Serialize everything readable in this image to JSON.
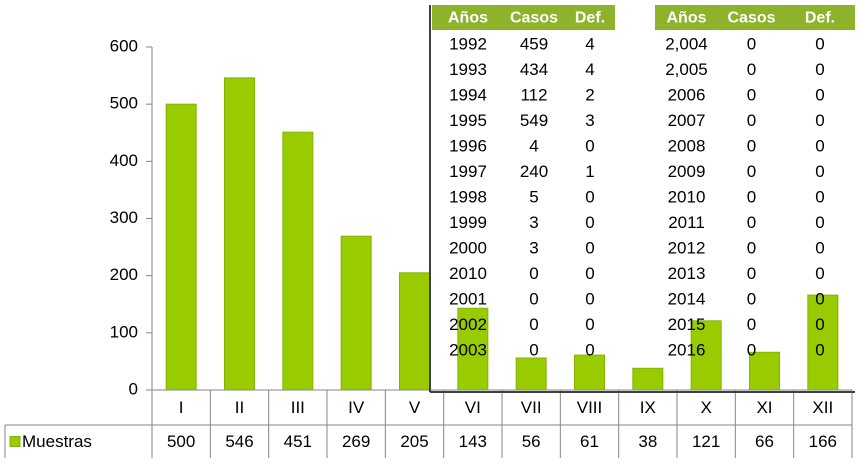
{
  "chart_data": {
    "type": "bar",
    "categories": [
      "I",
      "II",
      "III",
      "IV",
      "V",
      "VI",
      "VII",
      "VIII",
      "IX",
      "X",
      "XI",
      "XII"
    ],
    "series": [
      {
        "name": "Muestras",
        "color": "#99cc00",
        "values": [
          500,
          546,
          451,
          269,
          205,
          143,
          56,
          61,
          38,
          121,
          66,
          166
        ]
      }
    ],
    "ylim": [
      0,
      600
    ],
    "yticks": [
      0,
      100,
      200,
      300,
      400,
      500,
      600
    ]
  },
  "table": {
    "header": [
      "Años",
      "Casos",
      "Def.",
      "Años",
      "Casos",
      "Def."
    ],
    "rows": [
      [
        "1992",
        "459",
        "4",
        "2,004",
        "0",
        "0"
      ],
      [
        "1993",
        "434",
        "4",
        "2,005",
        "0",
        "0"
      ],
      [
        "1994",
        "112",
        "2",
        "2006",
        "0",
        "0"
      ],
      [
        "1995",
        "549",
        "3",
        "2007",
        "0",
        "0"
      ],
      [
        "1996",
        "4",
        "0",
        "2008",
        "0",
        "0"
      ],
      [
        "1997",
        "240",
        "1",
        "2009",
        "0",
        "0"
      ],
      [
        "1998",
        "5",
        "0",
        "2010",
        "0",
        "0"
      ],
      [
        "1999",
        "3",
        "0",
        "2011",
        "0",
        "0"
      ],
      [
        "2000",
        "3",
        "0",
        "2012",
        "0",
        "0"
      ],
      [
        "2010",
        "0",
        "0",
        "2013",
        "0",
        "0"
      ],
      [
        "2001",
        "0",
        "0",
        "2014",
        "0",
        "0"
      ],
      [
        "2002",
        "0",
        "0",
        "2015",
        "0",
        "0"
      ],
      [
        "2003",
        "0",
        "0",
        "2016",
        "0",
        "0"
      ]
    ]
  }
}
